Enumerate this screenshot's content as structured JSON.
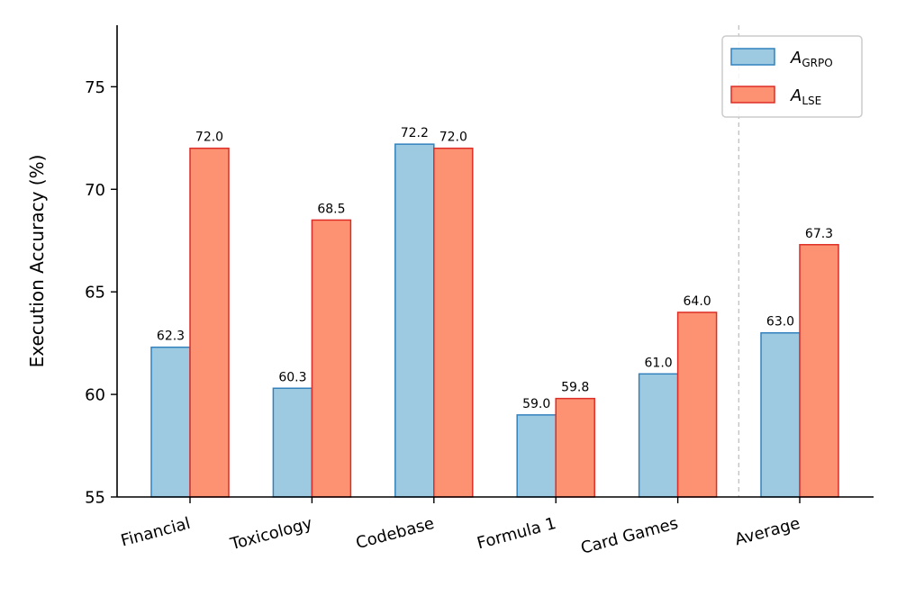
{
  "chart_data": {
    "type": "bar",
    "title": "",
    "xlabel": "",
    "ylabel": "Execution Accuracy (%)",
    "ylim": [
      55,
      78
    ],
    "yticks": [
      55,
      60,
      65,
      70,
      75
    ],
    "categories": [
      "Financial",
      "Toxicology",
      "Codebase",
      "Formula 1",
      "Card Games",
      "Average"
    ],
    "series": [
      {
        "name": "A",
        "subscript": "GRPO",
        "color": "#9ecae1",
        "edge": "#3182bd",
        "values": [
          62.3,
          60.3,
          72.2,
          59.0,
          61.0,
          63.0
        ]
      },
      {
        "name": "A",
        "subscript": "LSE",
        "color": "#fc9272",
        "edge": "#de2d26",
        "values": [
          72.0,
          68.5,
          72.0,
          59.8,
          64.0,
          67.3
        ]
      }
    ],
    "value_labels": [
      [
        "62.3",
        "60.3",
        "72.2",
        "59.0",
        "61.0",
        "63.0"
      ],
      [
        "72.0",
        "68.5",
        "72.0",
        "59.8",
        "64.0",
        "67.3"
      ]
    ],
    "separator_before": "Average",
    "legend_position": "top-right",
    "grid": false
  }
}
